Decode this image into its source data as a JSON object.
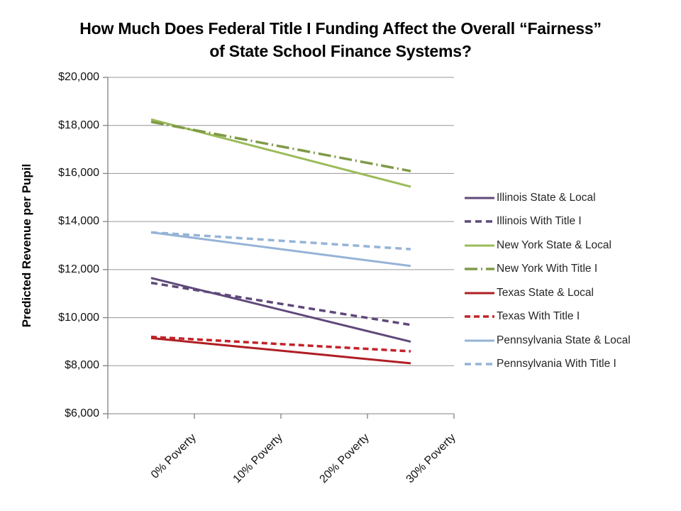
{
  "title": {
    "line1": "How Much Does Federal Title I Funding Affect the Overall “Fairness”",
    "line2": "of State School Finance Systems?"
  },
  "chart_data": {
    "type": "line",
    "title": "How Much Does Federal Title I Funding Affect the Overall “Fairness” of State School Finance Systems?",
    "xlabel": "",
    "ylabel": "Predicted Revenue per Pupil",
    "categories": [
      "0% Poverty",
      "10% Poverty",
      "20% Poverty",
      "30% Poverty"
    ],
    "ylim": [
      6000,
      20000
    ],
    "y_tick_values": [
      20000,
      18000,
      16000,
      14000,
      12000,
      10000,
      8000,
      6000
    ],
    "y_tick_labels": [
      "$20,000",
      "$18,000",
      "$16,000",
      "$14,000",
      "$12,000",
      "$10,000",
      "$8,000",
      "$6,000"
    ],
    "grid": "horizontal",
    "legend_position": "right",
    "axis_color": "#808080",
    "grid_color": "#969696",
    "series": [
      {
        "name": "Illinois State & Local",
        "color": "#5F497A",
        "dash": "",
        "width": 3,
        "values": [
          11650,
          10767,
          9883,
          9000
        ]
      },
      {
        "name": "Illinois With Title I",
        "color": "#5F497A",
        "dash": "9,6",
        "width": 3.5,
        "values": [
          11450,
          10867,
          10283,
          9700
        ]
      },
      {
        "name": "New York State & Local",
        "color": "#9BBB59",
        "dash": "",
        "width": 3,
        "values": [
          18250,
          17317,
          16383,
          15450
        ]
      },
      {
        "name": "New York With Title I",
        "color": "#7F9A48",
        "dash": "18,5,2,5",
        "width": 3.5,
        "values": [
          18150,
          17467,
          16783,
          16100
        ]
      },
      {
        "name": "Texas State & Local",
        "color": "#AF1E23",
        "dash": "",
        "width": 3,
        "values": [
          9150,
          8800,
          8450,
          8100
        ]
      },
      {
        "name": "Texas With Title I",
        "color": "#C42127",
        "dash": "8,5",
        "width": 3.5,
        "values": [
          9200,
          9000,
          8800,
          8600
        ]
      },
      {
        "name": "Pennsylvania State & Local",
        "color": "#95B3D7",
        "dash": "",
        "width": 3,
        "values": [
          13550,
          13083,
          12617,
          12150
        ]
      },
      {
        "name": "Pennsylvania With Title I",
        "color": "#95B3D7",
        "dash": "9,6",
        "width": 3.5,
        "values": [
          13550,
          13317,
          13083,
          12850
        ]
      }
    ]
  }
}
